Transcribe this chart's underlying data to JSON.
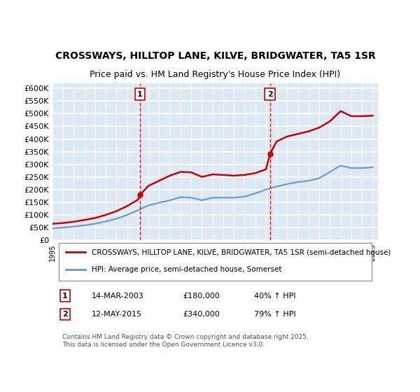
{
  "title": "CROSSWAYS, HILLTOP LANE, KILVE, BRIDGWATER, TA5 1SR",
  "subtitle": "Price paid vs. HM Land Registry's House Price Index (HPI)",
  "legend_line1": "CROSSWAYS, HILLTOP LANE, KILVE, BRIDGWATER, TA5 1SR (semi-detached house)",
  "legend_line2": "HPI: Average price, semi-detached house, Somerset",
  "transaction1_date": "14-MAR-2003",
  "transaction1_price": 180000,
  "transaction1_hpi": "40% ↑ HPI",
  "transaction2_date": "12-MAY-2015",
  "transaction2_price": 340000,
  "transaction2_hpi": "79% ↑ HPI",
  "copyright": "Contains HM Land Registry data © Crown copyright and database right 2025.\nThis data is licensed under the Open Government Licence v3.0.",
  "background_color": "#dce9f5",
  "plot_background": "#dce9f5",
  "red_line_color": "#cc0000",
  "blue_line_color": "#6699cc",
  "vline_color": "#cc0000",
  "grid_color": "#ffffff",
  "ylim": [
    0,
    620000
  ],
  "yticks": [
    0,
    50000,
    100000,
    150000,
    200000,
    250000,
    300000,
    350000,
    400000,
    450000,
    500000,
    550000,
    600000
  ],
  "ytick_labels": [
    "£0",
    "£50K",
    "£100K",
    "£150K",
    "£200K",
    "£250K",
    "£300K",
    "£350K",
    "£400K",
    "£450K",
    "£500K",
    "£550K",
    "£600K"
  ],
  "xlim_start": 1995.0,
  "xlim_end": 2025.5,
  "transaction1_x": 2003.2,
  "transaction2_x": 2015.37,
  "hpi_x": [
    1995,
    1996,
    1997,
    1998,
    1999,
    2000,
    2001,
    2002,
    2003,
    2004,
    2005,
    2006,
    2007,
    2008,
    2009,
    2010,
    2011,
    2012,
    2013,
    2014,
    2015,
    2016,
    2017,
    2018,
    2019,
    2020,
    2021,
    2022,
    2023,
    2024,
    2025
  ],
  "hpi_y": [
    47000,
    50000,
    54000,
    59000,
    65000,
    74000,
    85000,
    100000,
    118000,
    138000,
    148000,
    158000,
    170000,
    168000,
    158000,
    168000,
    168000,
    168000,
    172000,
    185000,
    200000,
    212000,
    222000,
    230000,
    235000,
    245000,
    270000,
    295000,
    285000,
    285000,
    288000
  ],
  "price_x": [
    1995,
    1996,
    1997,
    1998,
    1999,
    2000,
    2001,
    2002,
    2003,
    2003.2,
    2004,
    2005,
    2006,
    2007,
    2008,
    2009,
    2010,
    2011,
    2012,
    2013,
    2014,
    2015,
    2015.37,
    2016,
    2017,
    2018,
    2019,
    2020,
    2021,
    2022,
    2023,
    2024,
    2025
  ],
  "price_y": [
    65000,
    68000,
    73000,
    80000,
    88000,
    100000,
    115000,
    135000,
    160000,
    180000,
    215000,
    235000,
    255000,
    270000,
    268000,
    250000,
    260000,
    258000,
    255000,
    258000,
    265000,
    280000,
    340000,
    390000,
    410000,
    420000,
    430000,
    445000,
    470000,
    510000,
    490000,
    490000,
    492000
  ]
}
